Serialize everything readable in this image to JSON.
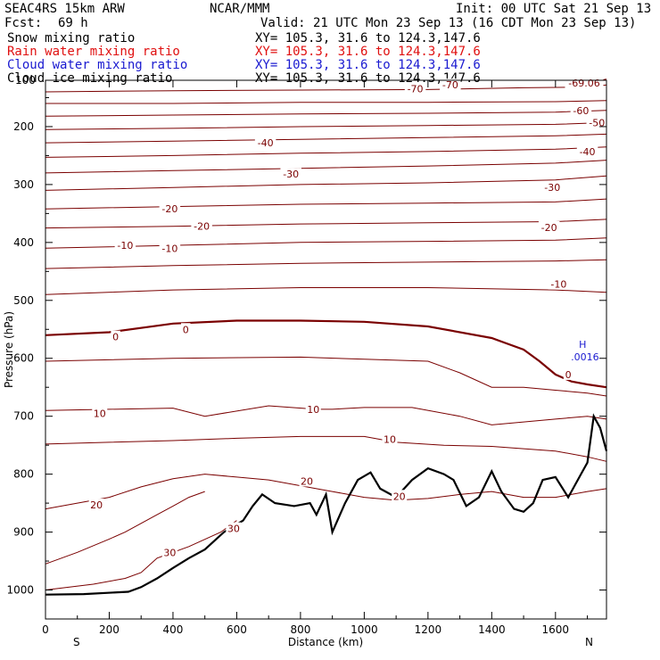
{
  "header": {
    "model": "SEAC4RS 15km ARW",
    "org": "NCAR/MMM",
    "init": "Init: 00 UTC Sat 21 Sep 13",
    "fcst_label": "Fcst:",
    "fcst_value": "69 h",
    "valid": "Valid: 21 UTC Mon 23 Sep 13 (16 CDT Mon 23 Sep 13)",
    "fields": [
      {
        "name": "Snow mixing ratio",
        "xy": "XY= 105.3, 31.6 to 124.3,147.6",
        "color": "#000000"
      },
      {
        "name": "Rain water mixing ratio",
        "xy": "XY= 105.3, 31.6 to 124.3,147.6",
        "color": "#e01010"
      },
      {
        "name": "Cloud water mixing ratio",
        "xy": "XY= 105.3, 31.6 to 124.3,147.6",
        "color": "#1a1ad0"
      },
      {
        "name": "Cloud ice mixing ratio",
        "xy": "XY= 105.3, 31.6 to 124.3,147.6",
        "color": "#000000"
      }
    ]
  },
  "chart_data": {
    "type": "line",
    "xlabel": "Distance (km)",
    "ylabel": "Pressure (hPa)",
    "xlim": [
      0,
      1760
    ],
    "ylim": [
      1050,
      120
    ],
    "x_ticks": [
      0,
      200,
      400,
      600,
      800,
      1000,
      1200,
      1400,
      1600
    ],
    "y_ticks": [
      1000,
      900,
      800,
      700,
      600,
      500,
      400,
      300,
      200
    ],
    "y_tick_labels": [
      "1000",
      "900",
      "800",
      "700",
      "600",
      "500",
      "400",
      "300",
      "200"
    ],
    "top_label": "100",
    "x_end_labels": {
      "left": "S",
      "right": "N"
    },
    "grid": false,
    "colors": {
      "isotherm": "#7a0000",
      "terrain": "#000000",
      "max_marker": "#1a1ad0"
    },
    "terrain": {
      "x": [
        0,
        120,
        260,
        300,
        350,
        400,
        450,
        500,
        560,
        620,
        650,
        680,
        720,
        780,
        830,
        850,
        880,
        900,
        940,
        980,
        1020,
        1050,
        1100,
        1150,
        1200,
        1250,
        1280,
        1320,
        1360,
        1400,
        1430,
        1470,
        1500,
        1530,
        1560,
        1600,
        1640,
        1680,
        1700,
        1720,
        1740,
        1760
      ],
      "p": [
        1008,
        1007,
        1003,
        995,
        980,
        962,
        945,
        930,
        900,
        880,
        855,
        835,
        850,
        855,
        850,
        870,
        835,
        900,
        850,
        810,
        797,
        825,
        840,
        810,
        790,
        800,
        810,
        855,
        840,
        795,
        830,
        860,
        865,
        850,
        810,
        805,
        840,
        800,
        780,
        700,
        720,
        760
      ]
    },
    "isotherms": [
      {
        "label": "-70",
        "x": [
          0,
          400,
          800,
          1200,
          1500,
          1650,
          1730,
          1760
        ],
        "p": [
          140,
          138,
          137,
          136,
          133,
          132,
          130,
          128
        ]
      },
      {
        "label": "-69.06",
        "x": [
          1650,
          1700,
          1740,
          1760
        ],
        "p": [
          124,
          124,
          120,
          118
        ]
      },
      {
        "label": "-70",
        "x": [
          0,
          400,
          800,
          1200,
          1600,
          1760
        ],
        "p": [
          160,
          160,
          158,
          158,
          157,
          155
        ]
      },
      {
        "label": "-60",
        "x": [
          0,
          400,
          800,
          1200,
          1600,
          1760
        ],
        "p": [
          182,
          180,
          178,
          177,
          175,
          172
        ]
      },
      {
        "label": "-50",
        "x": [
          0,
          400,
          800,
          1200,
          1600,
          1760
        ],
        "p": [
          205,
          203,
          200,
          198,
          196,
          193
        ]
      },
      {
        "label": "-40",
        "x": [
          0,
          400,
          800,
          1200,
          1600,
          1760
        ],
        "p": [
          228,
          225,
          222,
          219,
          216,
          213
        ]
      },
      {
        "label": "-40",
        "x": [
          0,
          400,
          800,
          1200,
          1600,
          1760
        ],
        "p": [
          253,
          250,
          246,
          243,
          239,
          235
        ]
      },
      {
        "label": "-30",
        "x": [
          0,
          400,
          800,
          1200,
          1600,
          1760
        ],
        "p": [
          280,
          276,
          272,
          268,
          263,
          258
        ]
      },
      {
        "label": "-30",
        "x": [
          0,
          400,
          800,
          1200,
          1600,
          1760
        ],
        "p": [
          310,
          305,
          300,
          297,
          292,
          285
        ]
      },
      {
        "label": "-20",
        "x": [
          0,
          400,
          800,
          1200,
          1600,
          1760
        ],
        "p": [
          342,
          338,
          334,
          332,
          330,
          325
        ]
      },
      {
        "label": "-20",
        "x": [
          0,
          400,
          800,
          1200,
          1600,
          1760
        ],
        "p": [
          375,
          372,
          368,
          366,
          364,
          360
        ]
      },
      {
        "label": "-10",
        "x": [
          0,
          400,
          800,
          1200,
          1600,
          1760
        ],
        "p": [
          410,
          405,
          400,
          398,
          396,
          392
        ]
      },
      {
        "label": "-10",
        "x": [
          0,
          400,
          800,
          1200,
          1600,
          1760
        ],
        "p": [
          445,
          440,
          436,
          434,
          432,
          430
        ]
      },
      {
        "label": "-10",
        "x": [
          0,
          400,
          800,
          1200,
          1600,
          1760
        ],
        "p": [
          490,
          482,
          478,
          478,
          482,
          486
        ]
      },
      {
        "label": "0",
        "x": [
          0,
          200,
          400,
          600,
          800,
          1000,
          1200,
          1400,
          1500,
          1550,
          1600,
          1650,
          1700,
          1760
        ],
        "p": [
          560,
          555,
          540,
          535,
          535,
          537,
          545,
          565,
          585,
          605,
          628,
          640,
          645,
          650
        ]
      },
      {
        "label": "",
        "x": [
          0,
          400,
          800,
          1200,
          1300,
          1400,
          1500,
          1600,
          1700,
          1760
        ],
        "p": [
          605,
          600,
          598,
          605,
          625,
          650,
          650,
          655,
          660,
          665
        ]
      },
      {
        "label": "10",
        "x": [
          0,
          200,
          400,
          500,
          700,
          850,
          900,
          1000,
          1150,
          1300,
          1400,
          1600,
          1700,
          1760
        ],
        "p": [
          690,
          688,
          686,
          700,
          682,
          688,
          688,
          685,
          685,
          700,
          715,
          705,
          700,
          705
        ]
      },
      {
        "label": "10",
        "x": [
          0,
          200,
          400,
          600,
          800,
          1000,
          1100,
          1250,
          1400,
          1600,
          1700,
          1760
        ],
        "p": [
          748,
          745,
          742,
          738,
          735,
          735,
          745,
          750,
          752,
          760,
          770,
          778
        ]
      },
      {
        "label": "20",
        "x": [
          0,
          200,
          300,
          400,
          500,
          600,
          700,
          800,
          900,
          1000,
          1100,
          1200,
          1300,
          1400,
          1500,
          1600,
          1700,
          1760
        ],
        "p": [
          860,
          840,
          822,
          808,
          800,
          805,
          810,
          820,
          830,
          840,
          845,
          842,
          835,
          830,
          840,
          840,
          830,
          825
        ]
      },
      {
        "label": "20",
        "x": [
          0,
          100,
          200,
          250,
          300,
          350,
          400,
          450,
          500
        ],
        "p": [
          955,
          935,
          912,
          900,
          885,
          870,
          855,
          840,
          830
        ]
      },
      {
        "label": "30",
        "x": [
          0,
          150,
          250,
          300,
          350,
          450,
          550,
          600
        ],
        "p": [
          1000,
          990,
          980,
          970,
          945,
          925,
          900,
          880
        ]
      }
    ],
    "contour_labels": [
      {
        "text": "-70",
        "x": 1160,
        "p": 135
      },
      {
        "text": "-70",
        "x": 1270,
        "p": 128
      },
      {
        "text": "-69.06",
        "x": 1690,
        "p": 125
      },
      {
        "text": "-60",
        "x": 1680,
        "p": 172
      },
      {
        "text": "-50",
        "x": 1730,
        "p": 193
      },
      {
        "text": "-40",
        "x": 690,
        "p": 228
      },
      {
        "text": "-40",
        "x": 1700,
        "p": 243
      },
      {
        "text": "-30",
        "x": 770,
        "p": 282
      },
      {
        "text": "-30",
        "x": 1590,
        "p": 305
      },
      {
        "text": "-20",
        "x": 390,
        "p": 342
      },
      {
        "text": "-20",
        "x": 490,
        "p": 372
      },
      {
        "text": "-20",
        "x": 1580,
        "p": 374
      },
      {
        "text": "-10",
        "x": 250,
        "p": 405
      },
      {
        "text": "-10",
        "x": 390,
        "p": 410
      },
      {
        "text": "-10",
        "x": 1610,
        "p": 472
      },
      {
        "text": "0",
        "x": 220,
        "p": 563
      },
      {
        "text": "0",
        "x": 440,
        "p": 550
      },
      {
        "text": "0",
        "x": 1640,
        "p": 628
      },
      {
        "text": "10",
        "x": 170,
        "p": 695
      },
      {
        "text": "10",
        "x": 840,
        "p": 688
      },
      {
        "text": "10",
        "x": 1080,
        "p": 740
      },
      {
        "text": "20",
        "x": 160,
        "p": 853
      },
      {
        "text": "20",
        "x": 820,
        "p": 812
      },
      {
        "text": "20",
        "x": 1110,
        "p": 838
      },
      {
        "text": "30",
        "x": 390,
        "p": 935
      },
      {
        "text": "30",
        "x": 590,
        "p": 894
      }
    ],
    "max_marker": {
      "symbol": "H",
      "value": ".0016",
      "x": 1710,
      "p": 597
    }
  }
}
